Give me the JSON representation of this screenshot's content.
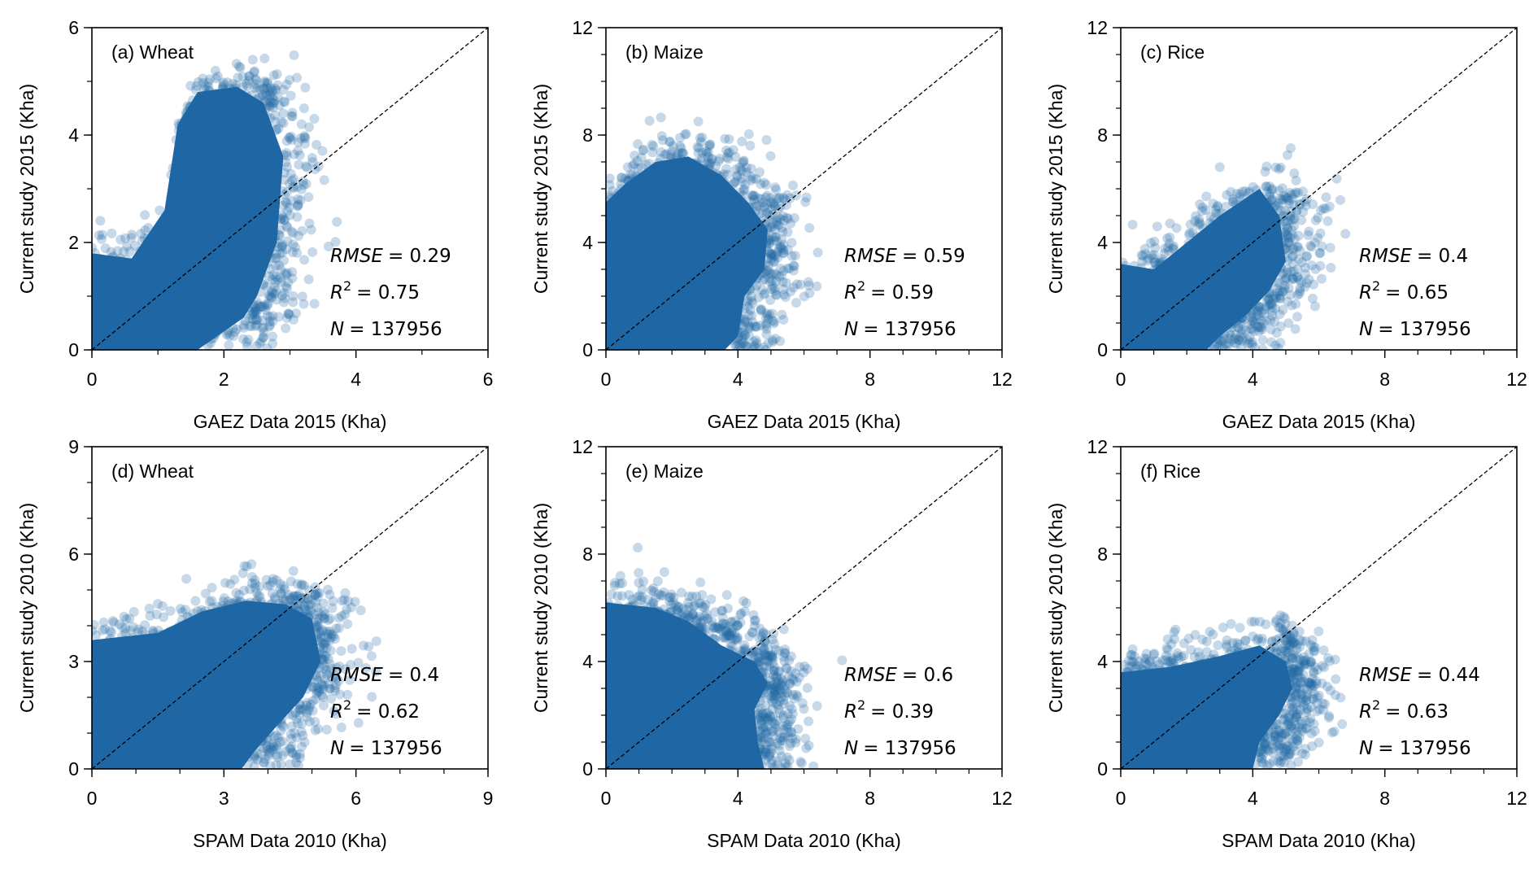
{
  "chart_data": [
    {
      "type": "scatter",
      "panel_label": "(a) Wheat",
      "xlabel": "GAEZ Data 2015 (Kha)",
      "ylabel": "Current study 2015 (Kha)",
      "xlim": [
        0,
        6
      ],
      "ylim": [
        0,
        6
      ],
      "xticks": [
        "0",
        "2",
        "4",
        "6"
      ],
      "yticks": [
        "0",
        "2",
        "4",
        "6"
      ],
      "reference_line": "1:1 dashed",
      "stats": {
        "rmse": "= 0.29",
        "r2": "= 0.75",
        "n": "= 137956"
      }
    },
    {
      "type": "scatter",
      "panel_label": "(b) Maize",
      "xlabel": "GAEZ Data 2015 (Kha)",
      "ylabel": "Current study 2015 (Kha)",
      "xlim": [
        0,
        12
      ],
      "ylim": [
        0,
        12
      ],
      "xticks": [
        "0",
        "4",
        "8",
        "12"
      ],
      "yticks": [
        "0",
        "4",
        "8",
        "12"
      ],
      "reference_line": "1:1 dashed",
      "stats": {
        "rmse": "= 0.59",
        "r2": "= 0.59",
        "n": "= 137956"
      }
    },
    {
      "type": "scatter",
      "panel_label": "(c) Rice",
      "xlabel": "GAEZ Data 2015 (Kha)",
      "ylabel": "Current study 2015 (Kha)",
      "xlim": [
        0,
        12
      ],
      "ylim": [
        0,
        12
      ],
      "xticks": [
        "0",
        "4",
        "8",
        "12"
      ],
      "yticks": [
        "0",
        "4",
        "8",
        "12"
      ],
      "reference_line": "1:1 dashed",
      "stats": {
        "rmse": "= 0.4",
        "r2": "= 0.65",
        "n": "= 137956"
      }
    },
    {
      "type": "scatter",
      "panel_label": "(d) Wheat",
      "xlabel": "SPAM Data 2010 (Kha)",
      "ylabel": "Current study 2010 (Kha)",
      "xlim": [
        0,
        9
      ],
      "ylim": [
        0,
        9
      ],
      "xticks": [
        "0",
        "3",
        "6",
        "9"
      ],
      "yticks": [
        "0",
        "3",
        "6",
        "9"
      ],
      "reference_line": "1:1 dashed",
      "stats": {
        "rmse": "= 0.4",
        "r2": "= 0.62",
        "n": "= 137956"
      }
    },
    {
      "type": "scatter",
      "panel_label": "(e) Maize",
      "xlabel": "SPAM Data 2010 (Kha)",
      "ylabel": "Current study 2010 (Kha)",
      "xlim": [
        0,
        12
      ],
      "ylim": [
        0,
        12
      ],
      "xticks": [
        "0",
        "4",
        "8",
        "12"
      ],
      "yticks": [
        "0",
        "4",
        "8",
        "12"
      ],
      "reference_line": "1:1 dashed",
      "stats": {
        "rmse": "= 0.6",
        "r2": "= 0.39",
        "n": "= 137956"
      }
    },
    {
      "type": "scatter",
      "panel_label": "(f) Rice",
      "xlabel": "SPAM Data 2010 (Kha)",
      "ylabel": "Current study 2010 (Kha)",
      "xlim": [
        0,
        12
      ],
      "ylim": [
        0,
        12
      ],
      "xticks": [
        "0",
        "4",
        "8",
        "12"
      ],
      "yticks": [
        "0",
        "4",
        "8",
        "12"
      ],
      "reference_line": "1:1 dashed",
      "stats": {
        "rmse": "= 0.44",
        "r2": "= 0.63",
        "n": "= 137956"
      }
    }
  ],
  "stat_symbols": {
    "rmse": "RMSE",
    "r": "R",
    "sup": "2",
    "n": "N"
  },
  "colors": {
    "points": "#1f66a5",
    "reference_line": "#000000"
  }
}
